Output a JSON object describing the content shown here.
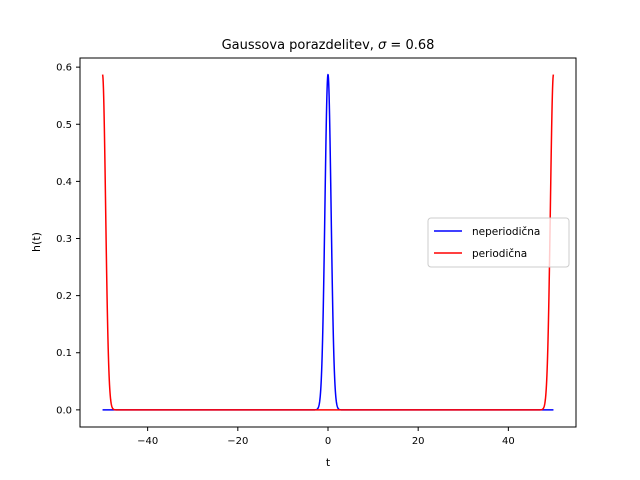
{
  "chart_data": {
    "type": "line",
    "title": "Gaussova porazdelitev, σ = 0.68",
    "title_parts": {
      "prefix": "Gaussova porazdelitev, ",
      "symbol": "σ",
      "suffix": " = 0.68"
    },
    "xlabel": "t",
    "ylabel": "h(t)",
    "xlim": [
      -55.0,
      55.0
    ],
    "ylim": [
      -0.03,
      0.616
    ],
    "xticks": [
      -40,
      -20,
      0,
      20,
      40
    ],
    "xtick_labels": [
      "−40",
      "−20",
      "0",
      "20",
      "40"
    ],
    "yticks": [
      0.0,
      0.1,
      0.2,
      0.3,
      0.4,
      0.5,
      0.6
    ],
    "ytick_labels": [
      "0.0",
      "0.1",
      "0.2",
      "0.3",
      "0.4",
      "0.5",
      "0.6"
    ],
    "grid": false,
    "legend_position": "center-right",
    "series": [
      {
        "name": "neperiodična",
        "color": "#0000ff",
        "x_range": [
          -50,
          50
        ],
        "mu": [
          0
        ],
        "sigma": 0.68,
        "peak": 0.587
      },
      {
        "name": "periodična",
        "color": "#ff0000",
        "x_range": [
          -50,
          50
        ],
        "mu": [
          -50,
          50
        ],
        "sigma": 0.68,
        "peak": 0.587
      }
    ]
  }
}
